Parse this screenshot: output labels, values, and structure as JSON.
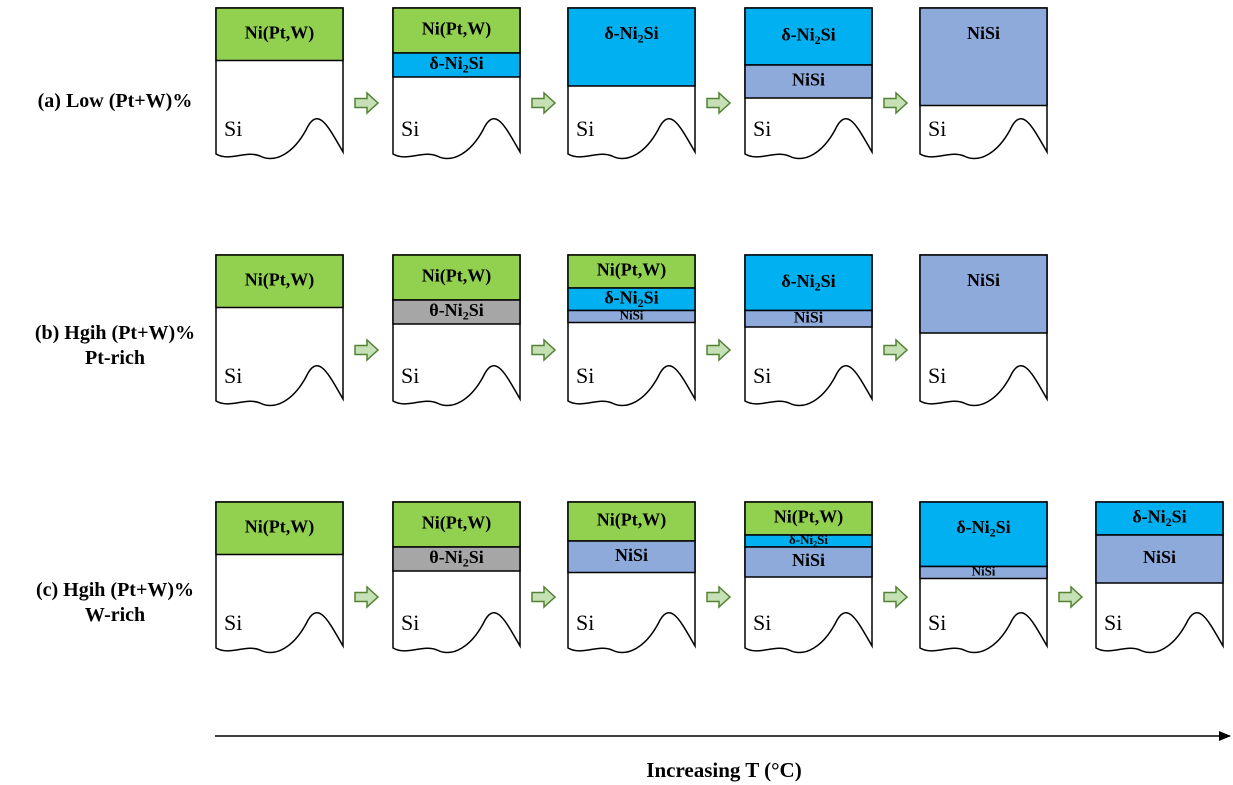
{
  "colors": {
    "ni": "#92d050",
    "delta": "#00b0f0",
    "nisi": "#8eaadb",
    "theta": "#a6a6a6",
    "arrow_fill": "#c5e0b4",
    "arrow_stroke": "#548235",
    "outline": "#000000"
  },
  "substrate_label": "Si",
  "axis_label": "Increasing T (°C)",
  "rows": [
    {
      "label_lines": [
        "(a) Low (Pt+W)%"
      ],
      "stages": [
        {
          "layers": [
            {
              "phase": "ni",
              "text": "Ni(Pt,W)",
              "thickness": 0.35
            }
          ]
        },
        {
          "layers": [
            {
              "phase": "ni",
              "text": "Ni(Pt,W)",
              "thickness": 0.3
            },
            {
              "phase": "delta",
              "text": "δ-Ni2Si",
              "thickness": 0.16
            }
          ]
        },
        {
          "layers": [
            {
              "phase": "delta",
              "text": "δ-Ni2Si",
              "thickness": 0.52
            }
          ]
        },
        {
          "layers": [
            {
              "phase": "delta",
              "text": "δ-Ni2Si",
              "thickness": 0.38
            },
            {
              "phase": "nisi",
              "text": "NiSi",
              "thickness": 0.22
            }
          ]
        },
        {
          "layers": [
            {
              "phase": "nisi",
              "text": "NiSi",
              "thickness": 0.65
            }
          ]
        }
      ]
    },
    {
      "label_lines": [
        "(b) Hgih (Pt+W)%",
        "Pt-rich"
      ],
      "stages": [
        {
          "layers": [
            {
              "phase": "ni",
              "text": "Ni(Pt,W)",
              "thickness": 0.35
            }
          ]
        },
        {
          "layers": [
            {
              "phase": "ni",
              "text": "Ni(Pt,W)",
              "thickness": 0.3
            },
            {
              "phase": "theta",
              "text": "θ-Ni2Si",
              "thickness": 0.16
            }
          ]
        },
        {
          "layers": [
            {
              "phase": "ni",
              "text": "Ni(Pt,W)",
              "thickness": 0.22
            },
            {
              "phase": "delta",
              "text": "δ-Ni2Si",
              "thickness": 0.15
            },
            {
              "phase": "nisi",
              "text": "NiSi",
              "thickness": 0.08
            }
          ]
        },
        {
          "layers": [
            {
              "phase": "delta",
              "text": "δ-Ni2Si",
              "thickness": 0.37
            },
            {
              "phase": "nisi",
              "text": "NiSi",
              "thickness": 0.11
            }
          ]
        },
        {
          "layers": [
            {
              "phase": "nisi",
              "text": "NiSi",
              "thickness": 0.52
            }
          ]
        }
      ]
    },
    {
      "label_lines": [
        "(c) Hgih (Pt+W)%",
        "W-rich"
      ],
      "stages": [
        {
          "layers": [
            {
              "phase": "ni",
              "text": "Ni(Pt,W)",
              "thickness": 0.35
            }
          ]
        },
        {
          "layers": [
            {
              "phase": "ni",
              "text": "Ni(Pt,W)",
              "thickness": 0.3
            },
            {
              "phase": "theta",
              "text": "θ-Ni2Si",
              "thickness": 0.16
            }
          ]
        },
        {
          "layers": [
            {
              "phase": "ni",
              "text": "Ni(Pt,W)",
              "thickness": 0.26
            },
            {
              "phase": "nisi",
              "text": "NiSi",
              "thickness": 0.21
            }
          ]
        },
        {
          "layers": [
            {
              "phase": "ni",
              "text": "Ni(Pt,W)",
              "thickness": 0.22
            },
            {
              "phase": "delta",
              "text": "δ-Ni2Si",
              "thickness": 0.08
            },
            {
              "phase": "nisi",
              "text": "NiSi",
              "thickness": 0.2
            }
          ]
        },
        {
          "layers": [
            {
              "phase": "delta",
              "text": "δ-Ni2Si",
              "thickness": 0.43
            },
            {
              "phase": "nisi",
              "text": "NiSi",
              "thickness": 0.08
            }
          ]
        },
        {
          "layers": [
            {
              "phase": "delta",
              "text": "δ-Ni2Si",
              "thickness": 0.22
            },
            {
              "phase": "nisi",
              "text": "NiSi",
              "thickness": 0.32
            }
          ]
        }
      ]
    }
  ]
}
